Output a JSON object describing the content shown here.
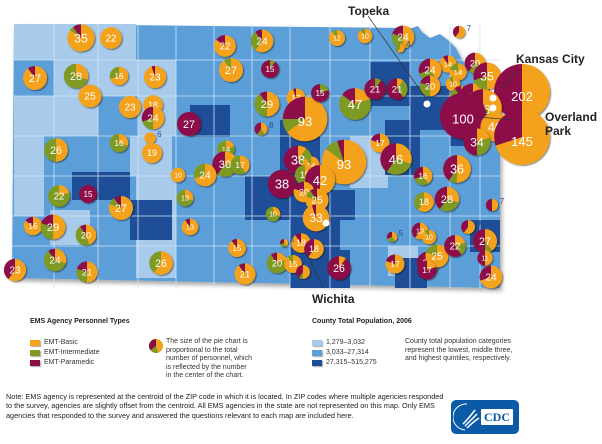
{
  "colors": {
    "emt_basic": "#f4a21c",
    "emt_intermediate": "#7f9a22",
    "emt_paramedic": "#8c0d46",
    "pop_low": "#a9cbeb",
    "pop_mid": "#5b9fd8",
    "pop_high": "#1f4e99"
  },
  "cities": {
    "topeka": "Topeka",
    "kansas_city": "Kansas City",
    "overland_park_1": "Overland",
    "overland_park_2": "Park",
    "wichita": "Wichita"
  },
  "legend_personnel": {
    "title": "EMS Agency Personnel Types",
    "items": [
      {
        "label": "EMT-Basic",
        "color_key": "emt_basic"
      },
      {
        "label": "EMT-Intermediate",
        "color_key": "emt_intermediate"
      },
      {
        "label": "EMT-Paramedic",
        "color_key": "emt_paramedic"
      }
    ],
    "pie_note": [
      "The size of the pie chart is",
      "proportional to the total",
      "number of personnel, which",
      "is reflected by the number",
      "in the center of the chart."
    ]
  },
  "legend_population": {
    "title": "County Total Population, 2006",
    "items": [
      {
        "label": "1,279–3,032",
        "color_key": "pop_low"
      },
      {
        "label": "3,033–27,314",
        "color_key": "pop_mid"
      },
      {
        "label": "27,315–515,275",
        "color_key": "pop_high"
      }
    ],
    "note": [
      "County total population categories",
      "represent the lowest, middle three,",
      "and highest quintiles, respectively."
    ]
  },
  "note": "Note: EMS agency is represented at the centroid of the ZIP code in which it is located. In ZIP codes where multiple agencies responded to the survey, agencies are slightly offset from the centroid. All EMS agencies in the state are not represented on this map. Only EMS agencies that responded to the survey and answered the questions relevant to each map are included here.",
  "logo": {
    "text": "CDC"
  },
  "agencies": [
    {
      "n": 35,
      "b": 0.85,
      "i": 0.05,
      "p": 0.1
    },
    {
      "n": 22,
      "b": 1,
      "i": 0,
      "p": 0
    },
    {
      "n": 27,
      "b": 0.9,
      "i": 0,
      "p": 0.1
    },
    {
      "n": 28,
      "b": 0.3,
      "i": 0.7,
      "p": 0
    },
    {
      "n": 16,
      "b": 0.7,
      "i": 0.3,
      "p": 0
    },
    {
      "n": 23,
      "b": 0.95,
      "i": 0,
      "p": 0.05
    },
    {
      "n": 25,
      "b": 1,
      "i": 0,
      "p": 0
    },
    {
      "n": 23,
      "b": 1,
      "i": 0,
      "p": 0
    },
    {
      "n": 18,
      "b": 1,
      "i": 0,
      "p": 0
    },
    {
      "n": 6,
      "b": 1,
      "i": 0,
      "p": 0
    },
    {
      "n": 16,
      "b": 0.3,
      "i": 0.7,
      "p": 0
    },
    {
      "n": 19,
      "b": 1,
      "i": 0,
      "p": 0
    },
    {
      "n": 26,
      "b": 0.5,
      "i": 0.5,
      "p": 0
    },
    {
      "n": 22,
      "b": 0.2,
      "i": 0.8,
      "p": 0
    },
    {
      "n": 15,
      "b": 0,
      "i": 0,
      "p": 1
    },
    {
      "n": 27,
      "b": 0.8,
      "i": 0.1,
      "p": 0.1
    },
    {
      "n": 16,
      "b": 0.85,
      "i": 0,
      "p": 0.15
    },
    {
      "n": 29,
      "b": 0.5,
      "i": 0.3,
      "p": 0.2
    },
    {
      "n": 20,
      "b": 0.45,
      "i": 0.45,
      "p": 0.1
    },
    {
      "n": 23,
      "b": 0.6,
      "i": 0,
      "p": 0.4
    },
    {
      "n": 24,
      "b": 0.3,
      "i": 0.6,
      "p": 0.1
    },
    {
      "n": 21,
      "b": 0.5,
      "i": 0.3,
      "p": 0.2
    },
    {
      "n": 22,
      "b": 0.85,
      "i": 0,
      "p": 0.15
    },
    {
      "n": 24,
      "b": 0.6,
      "i": 0.3,
      "p": 0.1
    },
    {
      "n": 27,
      "b": 0.9,
      "i": 0.1,
      "p": 0
    },
    {
      "n": 27,
      "b": 0,
      "i": 0,
      "p": 1
    },
    {
      "n": 24,
      "b": 0.5,
      "i": 0.2,
      "p": 0.3
    },
    {
      "n": 15,
      "b": 0,
      "i": 0.1,
      "p": 0.9
    },
    {
      "n": 29,
      "b": 0.5,
      "i": 0.4,
      "p": 0.1
    },
    {
      "n": 8,
      "b": 0.4,
      "i": 0.2,
      "p": 0.4
    },
    {
      "n": 14,
      "b": 0.2,
      "i": 0.8,
      "p": 0
    },
    {
      "n": 30,
      "b": 0.3,
      "i": 0.3,
      "p": 0.4
    },
    {
      "n": 17,
      "b": 0.4,
      "i": 0.6,
      "p": 0
    },
    {
      "n": 24,
      "b": 0.7,
      "i": 0.3,
      "p": 0
    },
    {
      "n": 10,
      "b": 1,
      "i": 0,
      "p": 0
    },
    {
      "n": 13,
      "b": 0.3,
      "i": 0.7,
      "p": 0
    },
    {
      "n": 13,
      "b": 0.9,
      "i": 0,
      "p": 0.1
    },
    {
      "n": 26,
      "b": 0.6,
      "i": 0.4,
      "p": 0
    },
    {
      "n": 21,
      "b": 0.9,
      "i": 0,
      "p": 0.1
    },
    {
      "n": 15,
      "b": 0.9,
      "i": 0,
      "p": 0.1
    },
    {
      "n": 20,
      "b": 0.2,
      "i": 0.7,
      "p": 0.1
    },
    {
      "n": 12,
      "b": 0.9,
      "i": 0.1,
      "p": 0
    },
    {
      "n": 10,
      "b": 0.9,
      "i": 0.1,
      "p": 0
    },
    {
      "n": 17,
      "b": 0.95,
      "i": 0,
      "p": 0.05
    },
    {
      "n": 93,
      "b": 0.65,
      "i": 0.1,
      "p": 0.25
    },
    {
      "n": 15,
      "b": 0,
      "i": 0.2,
      "p": 0.8
    },
    {
      "n": 38,
      "b": 0.1,
      "i": 0.3,
      "p": 0.6
    },
    {
      "n": 14,
      "b": 0.9,
      "i": 0.1,
      "p": 0
    },
    {
      "n": 93,
      "b": 0.85,
      "i": 0.1,
      "p": 0.05
    },
    {
      "n": 38,
      "b": 0,
      "i": 0,
      "p": 1
    },
    {
      "n": 19,
      "b": 0.5,
      "i": 0.5,
      "p": 0
    },
    {
      "n": 42,
      "b": 0.5,
      "i": 0,
      "p": 0.5
    },
    {
      "n": 20,
      "b": 0.8,
      "i": 0,
      "p": 0.2
    },
    {
      "n": 25,
      "b": 0.8,
      "i": 0.1,
      "p": 0.1
    },
    {
      "n": 10,
      "b": 0.3,
      "i": 0.7,
      "p": 0
    },
    {
      "n": 33,
      "b": 0.95,
      "i": 0,
      "p": 0.05
    },
    {
      "n": 18,
      "b": 0.9,
      "i": 0,
      "p": 0.1
    },
    {
      "n": 3,
      "b": 0.4,
      "i": 0.3,
      "p": 0.3
    },
    {
      "n": 18,
      "b": 0.6,
      "i": 0,
      "p": 0.4
    },
    {
      "n": 15,
      "b": 0.9,
      "i": 0.1,
      "p": 0
    },
    {
      "n": 9,
      "b": 0.5,
      "i": 0.1,
      "p": 0.4
    },
    {
      "n": 26,
      "b": 0.1,
      "i": 0,
      "p": 0.9
    },
    {
      "n": 47,
      "b": 0.2,
      "i": 0.65,
      "p": 0.15
    },
    {
      "n": 21,
      "b": 0,
      "i": 0.1,
      "p": 0.9
    },
    {
      "n": 21,
      "b": 0.1,
      "i": 0.3,
      "p": 0.6
    },
    {
      "n": 17,
      "b": 0.8,
      "i": 0,
      "p": 0.2
    },
    {
      "n": 46,
      "b": 0.3,
      "i": 0.3,
      "p": 0.4
    },
    {
      "n": 24,
      "b": 0.5,
      "i": 0.3,
      "p": 0.2
    },
    {
      "n": 4,
      "b": 0.6,
      "i": 0.4,
      "p": 0
    },
    {
      "n": 7,
      "b": 0.6,
      "i": 0,
      "p": 0.4
    },
    {
      "n": 14,
      "b": 0.9,
      "i": 0,
      "p": 0.1
    },
    {
      "n": 24,
      "b": 0.4,
      "i": 0.3,
      "p": 0.3
    },
    {
      "n": 14,
      "b": 0.8,
      "i": 0.2,
      "p": 0
    },
    {
      "n": 20,
      "b": 0.3,
      "i": 0.3,
      "p": 0.4
    },
    {
      "n": 20,
      "b": 0.5,
      "i": 0.3,
      "p": 0.2
    },
    {
      "n": 10,
      "b": 0.9,
      "i": 0.1,
      "p": 0
    },
    {
      "n": 22,
      "b": 0.4,
      "i": 0.5,
      "p": 0.1
    },
    {
      "n": 40,
      "b": 0.3,
      "i": 0,
      "p": 0.7
    },
    {
      "n": 35,
      "b": 0.5,
      "i": 0.2,
      "p": 0.3
    },
    {
      "n": 202,
      "b": 0.5,
      "i": 0,
      "p": 0.5
    },
    {
      "n": 66,
      "b": 0.35,
      "i": 0.35,
      "p": 0.3
    },
    {
      "n": 100,
      "b": 0,
      "i": 0,
      "p": 1
    },
    {
      "n": 40,
      "b": 1,
      "i": 0,
      "p": 0
    },
    {
      "n": 145,
      "b": 0.7,
      "i": 0,
      "p": 0.3
    },
    {
      "n": 34,
      "b": 0.2,
      "i": 0.3,
      "p": 0.5
    },
    {
      "n": 36,
      "b": 0.5,
      "i": 0.1,
      "p": 0.4
    },
    {
      "n": 16,
      "b": 0.4,
      "i": 0.3,
      "p": 0.3
    },
    {
      "n": 18,
      "b": 0.6,
      "i": 0.4,
      "p": 0
    },
    {
      "n": 28,
      "b": 0.3,
      "i": 0.3,
      "p": 0.4
    },
    {
      "n": 7,
      "b": 0.5,
      "i": 0,
      "p": 0.5
    },
    {
      "n": 9,
      "b": 0.6,
      "i": 0,
      "p": 0.4
    },
    {
      "n": 5,
      "b": 0.4,
      "i": 0.3,
      "p": 0.3
    },
    {
      "n": 13,
      "b": 0.6,
      "i": 0,
      "p": 0.4
    },
    {
      "n": 10,
      "b": 0.9,
      "i": 0.1,
      "p": 0
    },
    {
      "n": 24,
      "b": 0.3,
      "i": 0.3,
      "p": 0.4
    },
    {
      "n": 25,
      "b": 0.8,
      "i": 0.2,
      "p": 0
    },
    {
      "n": 22,
      "b": 0.2,
      "i": 0.2,
      "p": 0.6
    },
    {
      "n": 17,
      "b": 0.8,
      "i": 0,
      "p": 0.2
    },
    {
      "n": 17,
      "b": 0.2,
      "i": 0,
      "p": 0.8
    },
    {
      "n": 27,
      "b": 0.4,
      "i": 0.1,
      "p": 0.5
    },
    {
      "n": 11,
      "b": 0.5,
      "i": 0,
      "p": 0.5
    },
    {
      "n": 24,
      "b": 0.7,
      "i": 0,
      "p": 0.3
    }
  ]
}
